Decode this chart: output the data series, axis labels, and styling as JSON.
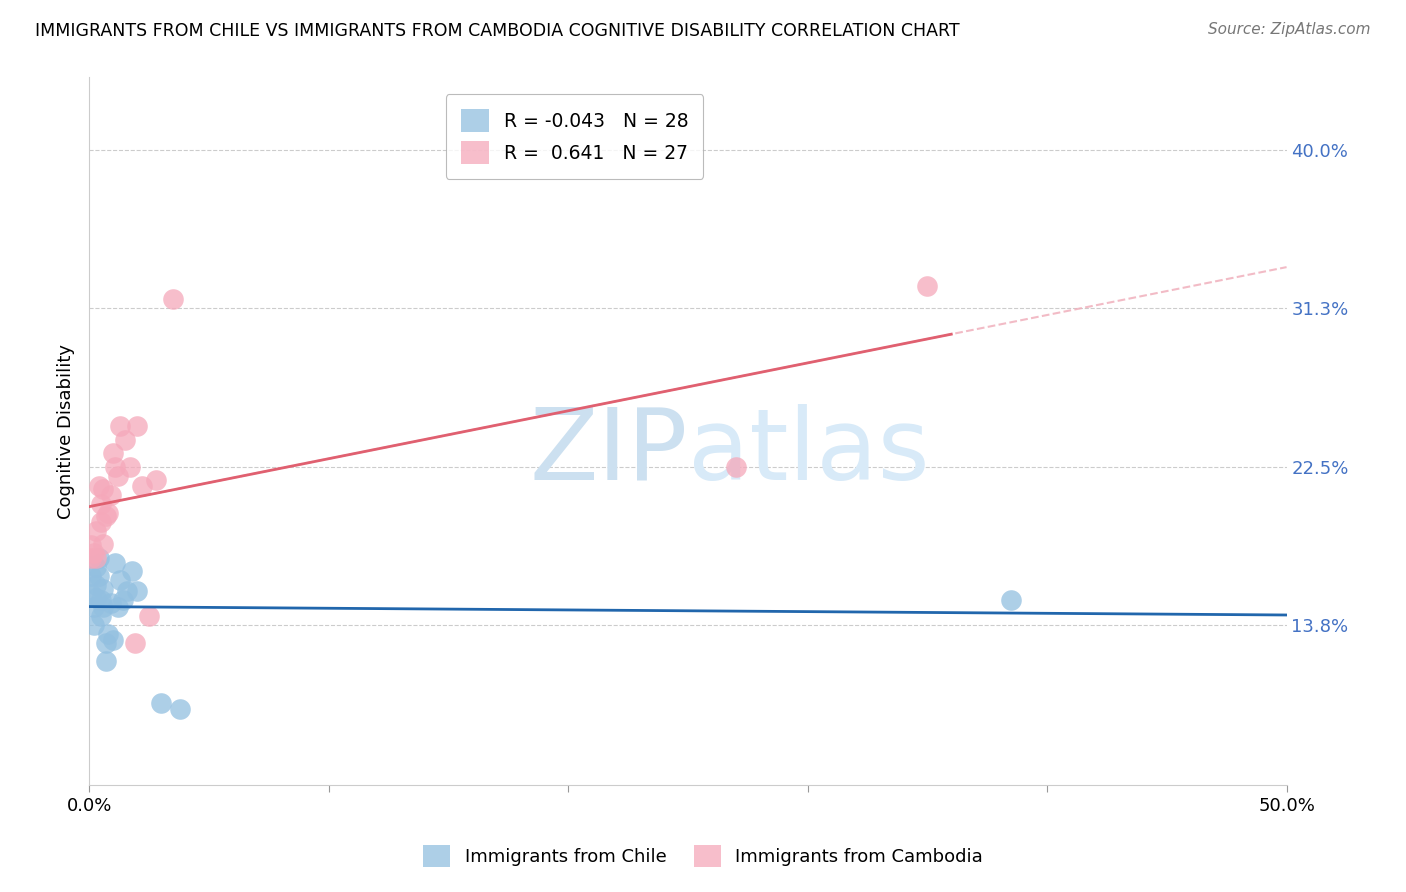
{
  "title": "IMMIGRANTS FROM CHILE VS IMMIGRANTS FROM CAMBODIA COGNITIVE DISABILITY CORRELATION CHART",
  "source": "Source: ZipAtlas.com",
  "ylabel_label": "Cognitive Disability",
  "xlim": [
    0.0,
    0.5
  ],
  "ylim": [
    0.05,
    0.44
  ],
  "ytick_positions": [
    0.138,
    0.225,
    0.313,
    0.4
  ],
  "ytick_labels": [
    "13.8%",
    "22.5%",
    "31.3%",
    "40.0%"
  ],
  "xtick_positions": [
    0.0,
    0.1,
    0.2,
    0.3,
    0.4,
    0.5
  ],
  "xticklabels": [
    "0.0%",
    "",
    "",
    "",
    "",
    "50.0%"
  ],
  "chile_R": -0.043,
  "chile_N": 28,
  "cambodia_R": 0.641,
  "cambodia_N": 27,
  "chile_color": "#92bfe0",
  "cambodia_color": "#f5a8ba",
  "trendline_chile_color": "#2166ac",
  "trendline_cambodia_color": "#e06070",
  "dashed_line_color": "#f0b0bc",
  "watermark_zip": "ZIP",
  "watermark_atlas": "atlas",
  "chile_x": [
    0.001,
    0.001,
    0.002,
    0.002,
    0.003,
    0.003,
    0.003,
    0.004,
    0.004,
    0.005,
    0.005,
    0.006,
    0.006,
    0.007,
    0.007,
    0.008,
    0.009,
    0.01,
    0.011,
    0.012,
    0.013,
    0.014,
    0.016,
    0.018,
    0.02,
    0.03,
    0.038,
    0.385
  ],
  "chile_y": [
    0.155,
    0.165,
    0.148,
    0.138,
    0.16,
    0.153,
    0.17,
    0.175,
    0.165,
    0.152,
    0.143,
    0.148,
    0.158,
    0.118,
    0.128,
    0.133,
    0.15,
    0.13,
    0.172,
    0.148,
    0.163,
    0.152,
    0.157,
    0.168,
    0.157,
    0.095,
    0.092,
    0.152
  ],
  "cambodia_x": [
    0.001,
    0.001,
    0.002,
    0.003,
    0.003,
    0.004,
    0.005,
    0.005,
    0.006,
    0.006,
    0.007,
    0.008,
    0.009,
    0.01,
    0.011,
    0.012,
    0.013,
    0.015,
    0.017,
    0.019,
    0.02,
    0.022,
    0.025,
    0.028,
    0.035,
    0.27,
    0.35
  ],
  "cambodia_y": [
    0.175,
    0.182,
    0.178,
    0.19,
    0.175,
    0.215,
    0.205,
    0.195,
    0.213,
    0.183,
    0.198,
    0.2,
    0.21,
    0.233,
    0.225,
    0.22,
    0.248,
    0.24,
    0.225,
    0.128,
    0.248,
    0.215,
    0.143,
    0.218,
    0.318,
    0.225,
    0.325
  ]
}
